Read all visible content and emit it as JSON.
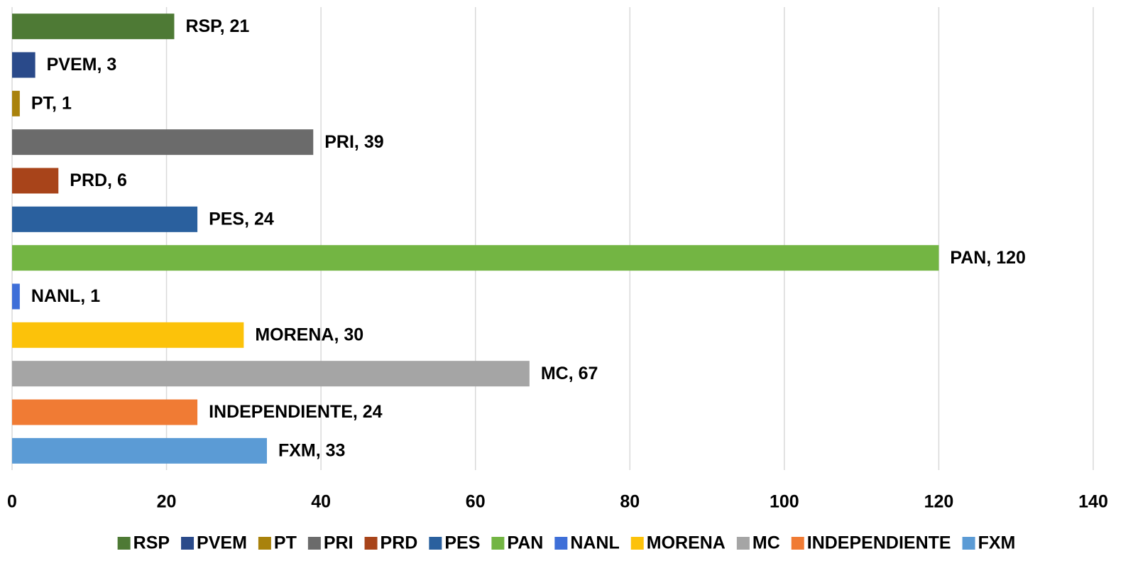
{
  "chart_data": {
    "type": "hbar",
    "categories": [
      "RSP",
      "PVEM",
      "PT",
      "PRI",
      "PRD",
      "PES",
      "PAN",
      "NANL",
      "MORENA",
      "MC",
      "INDEPENDIENTE",
      "FXM"
    ],
    "values": [
      21,
      3,
      1,
      39,
      6,
      24,
      120,
      1,
      30,
      67,
      24,
      33
    ],
    "value_labels": [
      "RSP, 21",
      "PVEM, 3",
      "PT, 1",
      "PRI, 39",
      "PRD, 6",
      "PES, 24",
      "PAN, 120",
      "NANL, 1",
      "MORENA, 30",
      "MC, 67",
      "INDEPENDIENTE, 24",
      "FXM, 33"
    ],
    "colors": [
      "#4e7a35",
      "#2a4a8a",
      "#a9820c",
      "#6b6b6b",
      "#a8441a",
      "#2a609e",
      "#73b543",
      "#3e6fd8",
      "#fcc20a",
      "#a5a5a5",
      "#f07b34",
      "#5b9bd5"
    ],
    "xlim": [
      0,
      140
    ],
    "xticks": [
      0,
      20,
      40,
      60,
      80,
      100,
      120,
      140
    ],
    "grid": true,
    "legend": "bottom"
  }
}
